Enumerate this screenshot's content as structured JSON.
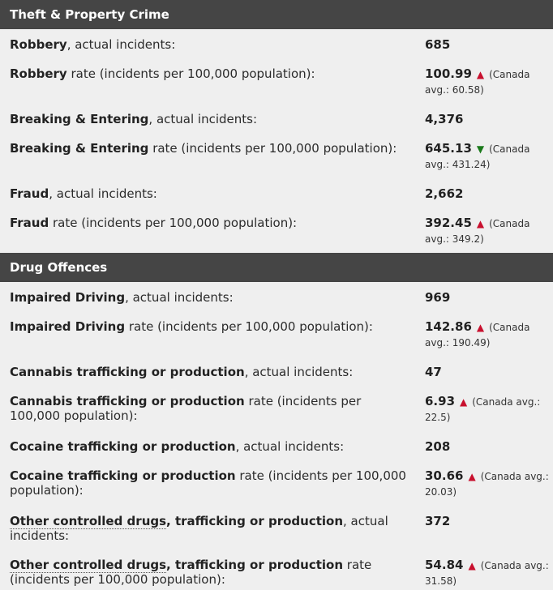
{
  "sections": [
    {
      "title": "Theft & Property Crime",
      "rows": [
        {
          "bold": "Robbery",
          "rest": ", actual incidents:",
          "value": "685"
        },
        {
          "bold": "Robbery",
          "rest": " rate (incidents per 100,000 population):",
          "value": "100.99",
          "arrow": "▲",
          "dir": "up",
          "avg": "(Canada avg.: 60.58)"
        },
        {
          "bold": "Breaking & Entering",
          "rest": ", actual incidents:",
          "value": "4,376"
        },
        {
          "bold": "Breaking & Entering",
          "rest": " rate (incidents per 100,000 population):",
          "value": "645.13",
          "arrow": "▼",
          "dir": "down",
          "avg": "(Canada avg.: 431.24)"
        },
        {
          "bold": "Fraud",
          "rest": ", actual incidents:",
          "value": "2,662"
        },
        {
          "bold": "Fraud",
          "rest": " rate (incidents per 100,000 population):",
          "value": "392.45",
          "arrow": "▲",
          "dir": "up",
          "avg": "(Canada avg.: 349.2)"
        }
      ]
    },
    {
      "title": "Drug Offences",
      "rows": [
        {
          "bold": "Impaired Driving",
          "rest": ", actual incidents:",
          "value": "969"
        },
        {
          "bold": "Impaired Driving",
          "rest": " rate (incidents per 100,000 population):",
          "value": "142.86",
          "arrow": "▲",
          "dir": "up",
          "avg": "(Canada avg.: 190.49)"
        },
        {
          "bold": "Cannabis trafficking or production",
          "rest": ", actual incidents:",
          "value": "47"
        },
        {
          "bold": "Cannabis trafficking or production",
          "rest": " rate (incidents per 100,000 population):",
          "value": "6.93",
          "arrow": "▲",
          "dir": "up",
          "avg": "(Canada avg.: 22.5)"
        },
        {
          "bold": "Cocaine trafficking or production",
          "rest": ", actual incidents:",
          "value": "208"
        },
        {
          "bold": "Cocaine trafficking or production",
          "rest": " rate (incidents per 100,000 population):",
          "value": "30.66",
          "arrow": "▲",
          "dir": "up",
          "avg": "(Canada avg.: 20.03)"
        },
        {
          "bold_dotted": "Other controlled drugs",
          "bold": ", trafficking or production",
          "rest": ", actual incidents:",
          "value": "372"
        },
        {
          "bold_dotted": "Other controlled drugs",
          "bold": ", trafficking or production",
          "rest": " rate (incidents per 100,000 population):",
          "value": "54.84",
          "arrow": "▲",
          "dir": "up",
          "avg": "(Canada avg.: 31.58)"
        }
      ]
    }
  ]
}
